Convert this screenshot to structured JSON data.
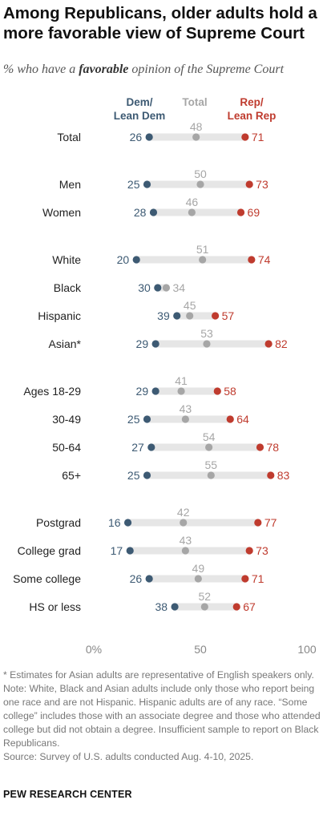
{
  "title": "Among Republicans, older adults hold a more favorable view of Supreme Court",
  "subtitle": {
    "prefix": "% who have a ",
    "emphasis": "favorable",
    "suffix": " opinion of the Supreme Court"
  },
  "colors": {
    "dem": "#3d5a73",
    "total": "#a6a6a6",
    "rep": "#bf3b2e",
    "track": "#e6e6e6",
    "label": "#222222"
  },
  "chart_data": {
    "type": "dot",
    "title": "Among Republicans, older adults hold a more favorable view of Supreme Court",
    "series_headers": {
      "dem": [
        "Dem/",
        "Lean Dem"
      ],
      "total": [
        "Total"
      ],
      "rep": [
        "Rep/",
        "Lean Rep"
      ]
    },
    "xlim": [
      0,
      100
    ],
    "x_ticks": [
      "0%",
      "50",
      "100"
    ],
    "groups": [
      [
        {
          "label": "Total",
          "dem": 26,
          "total": 48,
          "rep": 71
        }
      ],
      [
        {
          "label": "Men",
          "dem": 25,
          "total": 50,
          "rep": 73
        },
        {
          "label": "Women",
          "dem": 28,
          "total": 46,
          "rep": 69
        }
      ],
      [
        {
          "label": "White",
          "dem": 20,
          "total": 51,
          "rep": 74
        },
        {
          "label": "Black",
          "dem": 30,
          "total": 34,
          "rep": null
        },
        {
          "label": "Hispanic",
          "dem": 39,
          "total": 45,
          "rep": 57
        },
        {
          "label": "Asian*",
          "dem": 29,
          "total": 53,
          "rep": 82
        }
      ],
      [
        {
          "label": "Ages 18-29",
          "dem": 29,
          "total": 41,
          "rep": 58
        },
        {
          "label": "30-49",
          "dem": 25,
          "total": 43,
          "rep": 64
        },
        {
          "label": "50-64",
          "dem": 27,
          "total": 54,
          "rep": 78
        },
        {
          "label": "65+",
          "dem": 25,
          "total": 55,
          "rep": 83
        }
      ],
      [
        {
          "label": "Postgrad",
          "dem": 16,
          "total": 42,
          "rep": 77
        },
        {
          "label": "College grad",
          "dem": 17,
          "total": 43,
          "rep": 73
        },
        {
          "label": "Some college",
          "dem": 26,
          "total": 49,
          "rep": 71
        },
        {
          "label": "HS or less",
          "dem": 38,
          "total": 52,
          "rep": 67
        }
      ]
    ]
  },
  "notes": [
    "* Estimates for Asian adults are representative of English speakers only.",
    "Note: White, Black and Asian adults include only those who report being one race and are not Hispanic. Hispanic adults are of any race. “Some college” includes those with an associate degree and those who attended college but did not obtain a degree. Insufficient sample to report on Black Republicans.",
    "Source: Survey of U.S. adults conducted Aug. 4-10, 2025."
  ],
  "logo": "PEW RESEARCH CENTER"
}
